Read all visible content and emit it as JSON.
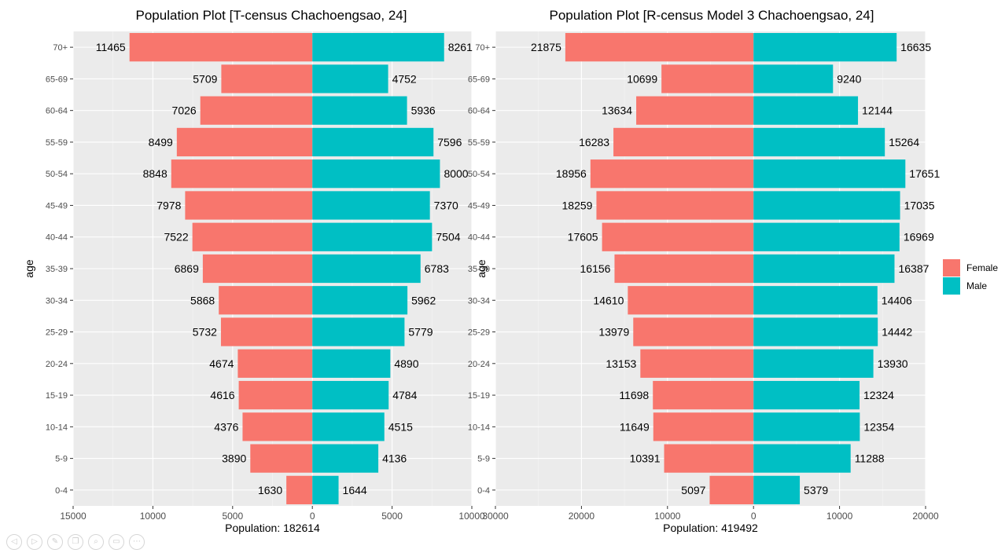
{
  "age_groups": [
    "70+",
    "65-69",
    "60-64",
    "55-59",
    "50-54",
    "45-49",
    "40-44",
    "35-39",
    "30-34",
    "25-29",
    "20-24",
    "15-19",
    "10-14",
    "5-9",
    "0-4"
  ],
  "colors": {
    "female": "#F8766D",
    "male": "#00BFC4",
    "panel": "#EBEBEB",
    "grid": "#FFFFFF"
  },
  "legend": {
    "entries": [
      "Female",
      "Male"
    ]
  },
  "chart_data": [
    {
      "type": "bar",
      "orientation": "horizontal-population-pyramid",
      "title": "Population Plot  [T-census Chachoengsao, 24]",
      "xlabel": "Population: 182614",
      "ylabel": "age",
      "categories": [
        "70+",
        "65-69",
        "60-64",
        "55-59",
        "50-54",
        "45-49",
        "40-44",
        "35-39",
        "30-34",
        "25-29",
        "20-24",
        "15-19",
        "10-14",
        "5-9",
        "0-4"
      ],
      "series": [
        {
          "name": "Female",
          "values": [
            11465,
            5709,
            7026,
            8499,
            8848,
            7978,
            7522,
            6869,
            5868,
            5732,
            4674,
            4616,
            4376,
            3890,
            1630
          ]
        },
        {
          "name": "Male",
          "values": [
            8261,
            4752,
            5936,
            7596,
            8000,
            7370,
            7504,
            6783,
            5962,
            5779,
            4890,
            4784,
            4515,
            4136,
            1644
          ]
        }
      ],
      "xlim": [
        -15000,
        10000
      ],
      "xticks": [
        -15000,
        -10000,
        -5000,
        0,
        5000,
        10000
      ],
      "xtick_labels": [
        "15000",
        "10000",
        "5000",
        "0",
        "5000",
        "10000"
      ],
      "grid": true
    },
    {
      "type": "bar",
      "orientation": "horizontal-population-pyramid",
      "title": "Population Plot  [R-census Model 3 Chachoengsao, 24]",
      "xlabel": "Population: 419492",
      "ylabel": "age",
      "categories": [
        "70+",
        "65-69",
        "60-64",
        "55-59",
        "50-54",
        "45-49",
        "40-44",
        "35-39",
        "30-34",
        "25-29",
        "20-24",
        "15-19",
        "10-14",
        "5-9",
        "0-4"
      ],
      "series": [
        {
          "name": "Female",
          "values": [
            21875,
            10699,
            13634,
            16283,
            18956,
            18259,
            17605,
            16156,
            14610,
            13979,
            13153,
            11698,
            11649,
            10391,
            5097
          ]
        },
        {
          "name": "Male",
          "values": [
            16635,
            9240,
            12144,
            15264,
            17651,
            17035,
            16969,
            16387,
            14406,
            14442,
            13930,
            12324,
            12354,
            11288,
            5379
          ]
        }
      ],
      "xlim": [
        -30000,
        20000
      ],
      "xticks": [
        -30000,
        -20000,
        -10000,
        0,
        10000,
        20000
      ],
      "xtick_labels": [
        "30000",
        "20000",
        "10000",
        "0",
        "10000",
        "20000"
      ],
      "grid": true,
      "legend_position": "right"
    }
  ],
  "controls": [
    {
      "icon": "previous-slide-icon",
      "glyph": "◁"
    },
    {
      "icon": "next-slide-icon",
      "glyph": "▷"
    },
    {
      "icon": "pen-icon",
      "glyph": "✎"
    },
    {
      "icon": "copy-slide-icon",
      "glyph": "❐"
    },
    {
      "icon": "zoom-icon",
      "glyph": "⌕"
    },
    {
      "icon": "subtitle-icon",
      "glyph": "▭"
    },
    {
      "icon": "more-options-icon",
      "glyph": "⋯"
    }
  ]
}
